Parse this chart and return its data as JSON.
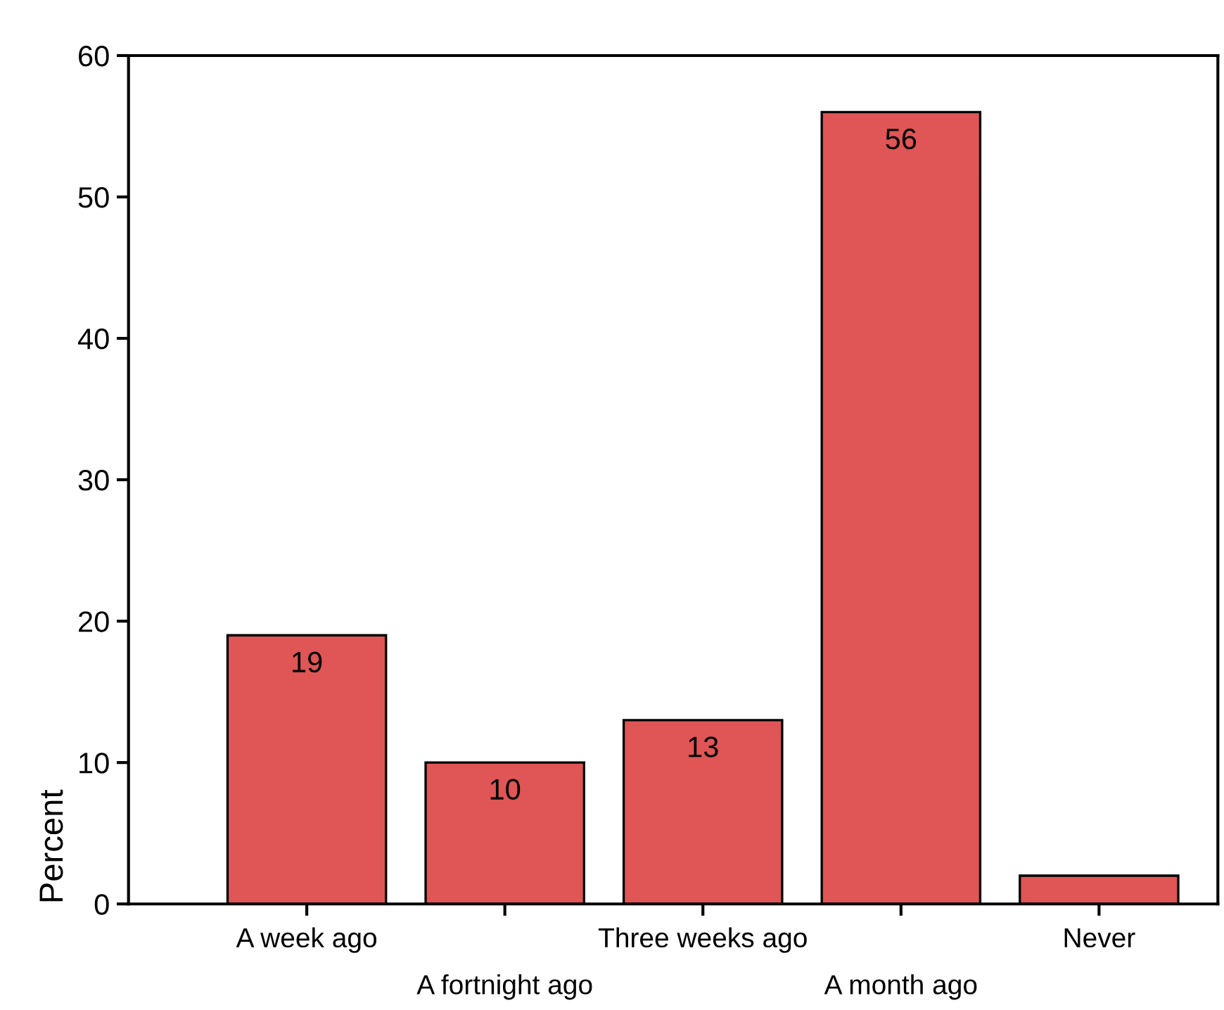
{
  "chart_data": {
    "type": "bar",
    "ylabel": "Percent",
    "categories": [
      "A week ago",
      "A fortnight ago",
      "Three weeks ago",
      "A month ago",
      "Never"
    ],
    "values": [
      19,
      10,
      13,
      56,
      2
    ],
    "value_labels": [
      "19",
      "10",
      "13",
      "56",
      null
    ],
    "color": "#e05555",
    "ylim": [
      0,
      60
    ],
    "yticks": [
      0,
      10,
      20,
      30,
      40,
      50,
      60
    ],
    "grid": false,
    "legend": false
  }
}
